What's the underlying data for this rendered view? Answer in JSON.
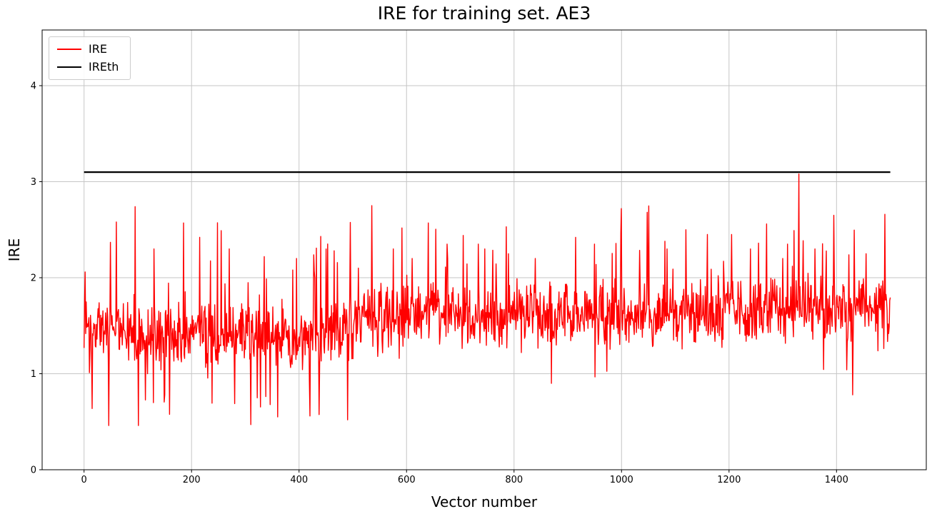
{
  "figure": {
    "title": "IRE for training set. AE3",
    "xlabel": "Vector number",
    "ylabel": "IRE"
  },
  "chart_data": {
    "type": "line",
    "title": "IRE for training set. AE3",
    "xlabel": "Vector number",
    "ylabel": "IRE",
    "xlim": [
      -78,
      1567
    ],
    "ylim": [
      0,
      4.58
    ],
    "x_ticks": [
      0,
      200,
      400,
      600,
      800,
      1000,
      1200,
      1400
    ],
    "y_ticks": [
      0,
      1,
      2,
      3,
      4
    ],
    "grid": true,
    "grid_color": "#c6c6c6",
    "legend": {
      "position": "upper-left",
      "entries": [
        {
          "label": "IRE",
          "color": "#ff0000"
        },
        {
          "label": "IREth",
          "color": "#000000"
        }
      ]
    },
    "series": [
      {
        "name": "IRE",
        "color": "#ff0000",
        "line_width": 1.4,
        "x_start": 0,
        "x_end": 1500,
        "n_points": 1500,
        "profile": {
          "seed": 20240613,
          "base_points": [
            [
              0,
              1.42
            ],
            [
              470,
              1.38
            ],
            [
              520,
              1.58
            ],
            [
              1100,
              1.62
            ],
            [
              1500,
              1.7
            ]
          ],
          "noise_amp": 0.8,
          "spike_prob": 0.06,
          "spike_amp": 0.95,
          "dip_prob_early": 0.085,
          "dip_amp_early": 0.95,
          "dip_prob_late": 0.03,
          "dip_amp_late": 0.6,
          "early_cutoff": 500,
          "min": 0.46,
          "max": 3.08
        },
        "peaks": [
          [
            2,
            2.06
          ],
          [
            60,
            2.58
          ],
          [
            95,
            2.74
          ],
          [
            130,
            2.3
          ],
          [
            185,
            2.57
          ],
          [
            215,
            2.42
          ],
          [
            255,
            2.49
          ],
          [
            270,
            2.3
          ],
          [
            310,
            0.47
          ],
          [
            335,
            2.22
          ],
          [
            360,
            0.55
          ],
          [
            395,
            2.2
          ],
          [
            420,
            0.56
          ],
          [
            440,
            2.43
          ],
          [
            465,
            2.28
          ],
          [
            490,
            0.52
          ],
          [
            510,
            2.1
          ],
          [
            535,
            2.75
          ],
          [
            575,
            2.3
          ],
          [
            610,
            2.2
          ],
          [
            640,
            2.57
          ],
          [
            675,
            2.35
          ],
          [
            705,
            2.44
          ],
          [
            745,
            2.3
          ],
          [
            790,
            2.25
          ],
          [
            840,
            2.2
          ],
          [
            870,
            0.9
          ],
          [
            915,
            2.42
          ],
          [
            950,
            2.35
          ],
          [
            1000,
            2.72
          ],
          [
            1048,
            2.68
          ],
          [
            1085,
            2.3
          ],
          [
            1120,
            2.5
          ],
          [
            1160,
            2.45
          ],
          [
            1205,
            2.45
          ],
          [
            1240,
            2.3
          ],
          [
            1270,
            2.56
          ],
          [
            1300,
            2.2
          ],
          [
            1330,
            3.08
          ],
          [
            1360,
            2.3
          ],
          [
            1395,
            2.65
          ],
          [
            1430,
            0.78
          ],
          [
            1455,
            2.25
          ],
          [
            1490,
            2.66
          ]
        ]
      },
      {
        "name": "IREth",
        "color": "#000000",
        "line_width": 2.2,
        "constant": 3.1,
        "x_start": 0,
        "x_end": 1500
      }
    ]
  }
}
